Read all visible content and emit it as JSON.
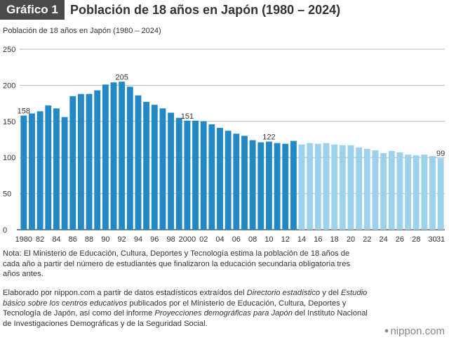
{
  "header": {
    "badge": "Gráfico 1",
    "title": "Población de 18 años en Japón (1980 – 2024)"
  },
  "colors": {
    "actual": "#2389c4",
    "projected": "#9dd2ec",
    "axis": "#333333",
    "grid": "#bbbbbb"
  },
  "chart_data": {
    "type": "bar",
    "title": "Población de 18 años en Japón (1980 – 2024)",
    "subtitle": "Población de 18 años en Japón (1980 – 2024)",
    "xlabel": "",
    "ylabel": "",
    "ylim": [
      0,
      250
    ],
    "yticks": [
      0,
      50,
      100,
      150,
      200,
      250
    ],
    "grid": true,
    "categories": [
      1980,
      1981,
      1982,
      1983,
      1984,
      1985,
      1986,
      1987,
      1988,
      1989,
      1990,
      1991,
      1992,
      1993,
      1994,
      1995,
      1996,
      1997,
      1998,
      1999,
      2000,
      2001,
      2002,
      2003,
      2004,
      2005,
      2006,
      2007,
      2008,
      2009,
      2010,
      2011,
      2012,
      2013,
      2014,
      2015,
      2016,
      2017,
      2018,
      2019,
      2020,
      2021,
      2022,
      2023,
      2024,
      2025,
      2026,
      2027,
      2028,
      2029,
      2030,
      2031
    ],
    "values": [
      158,
      161,
      164,
      172,
      168,
      156,
      185,
      188,
      188,
      193,
      201,
      204,
      205,
      198,
      186,
      177,
      173,
      168,
      162,
      155,
      151,
      151,
      150,
      146,
      141,
      137,
      133,
      130,
      124,
      121,
      122,
      120,
      119,
      123,
      118,
      120,
      119,
      120,
      118,
      117,
      117,
      114,
      112,
      110,
      106,
      109,
      107,
      104,
      103,
      104,
      102,
      99
    ],
    "projected_from": 2014,
    "x_tick_labels": [
      {
        "year": 1980,
        "label": "1980"
      },
      {
        "year": 1982,
        "label": "82"
      },
      {
        "year": 1984,
        "label": "84"
      },
      {
        "year": 1986,
        "label": "86"
      },
      {
        "year": 1988,
        "label": "88"
      },
      {
        "year": 1990,
        "label": "90"
      },
      {
        "year": 1992,
        "label": "92"
      },
      {
        "year": 1994,
        "label": "94"
      },
      {
        "year": 1996,
        "label": "96"
      },
      {
        "year": 1998,
        "label": "98"
      },
      {
        "year": 2000,
        "label": "2000"
      },
      {
        "year": 2002,
        "label": "02"
      },
      {
        "year": 2004,
        "label": "04"
      },
      {
        "year": 2006,
        "label": "06"
      },
      {
        "year": 2008,
        "label": "08"
      },
      {
        "year": 2010,
        "label": "10"
      },
      {
        "year": 2012,
        "label": "12"
      },
      {
        "year": 2014,
        "label": "14"
      },
      {
        "year": 2016,
        "label": "16"
      },
      {
        "year": 2018,
        "label": "18"
      },
      {
        "year": 2020,
        "label": "20"
      },
      {
        "year": 2022,
        "label": "22"
      },
      {
        "year": 2024,
        "label": "24"
      },
      {
        "year": 2026,
        "label": "26"
      },
      {
        "year": 2028,
        "label": "28"
      },
      {
        "year": 2030,
        "label": "30"
      },
      {
        "year": 2031,
        "label": "31"
      }
    ],
    "annotations": [
      {
        "year": 1980,
        "label": "158"
      },
      {
        "year": 1992,
        "label": "205"
      },
      {
        "year": 2000,
        "label": "151"
      },
      {
        "year": 2010,
        "label": "122"
      },
      {
        "year": 2031,
        "label": "99"
      }
    ]
  },
  "note": "Nota: El Ministerio de Educación, Cultura, Deportes y Tecnología estima la población de 18 años de cada año a partir del número de estudiantes que finalizaron la educación secundaria obligatoria tres años antes.",
  "source": {
    "part1": "Elaborado por nippon.com a partir de datos estadísticos extraídos del ",
    "italic1": "Directorio estadístico",
    "part2": " y del ",
    "italic2": "Estudio básico sobre los centros educativos",
    "part3": " publicados por el Ministerio de Educación, Cultura, Deportes y Tecnología de Japón, así como del informe ",
    "italic3": "Proyecciones demográficas para Japón",
    "part4": " del Instituto Nacional de Investigaciones Demográficas y de la Seguridad Social."
  },
  "logo": {
    "mark": "●",
    "text": "nippon.com"
  }
}
